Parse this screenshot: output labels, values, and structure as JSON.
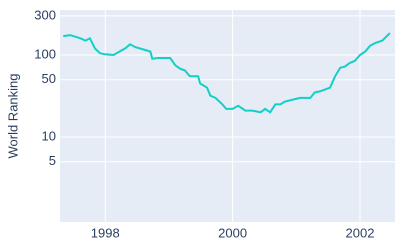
{
  "chart_data": {
    "type": "line",
    "y_label": "World Ranking",
    "x": [
      1997.34,
      1997.45,
      1997.61,
      1997.69,
      1997.76,
      1997.84,
      1997.92,
      1998.0,
      1998.13,
      1998.24,
      1998.31,
      1998.39,
      1998.47,
      1998.63,
      1998.71,
      1998.74,
      1998.83,
      1999.02,
      1999.1,
      1999.18,
      1999.25,
      1999.33,
      1999.46,
      1999.49,
      1999.6,
      1999.65,
      1999.73,
      1999.84,
      1999.9,
      2000.0,
      2000.09,
      2000.2,
      2000.31,
      2000.44,
      2000.51,
      2000.59,
      2000.67,
      2000.75,
      2000.82,
      2000.9,
      2001.06,
      2001.22,
      2001.29,
      2001.37,
      2001.53,
      2001.61,
      2001.69,
      2001.76,
      2001.84,
      2001.92,
      2002.0,
      2002.08,
      2002.16,
      2002.24,
      2002.35,
      2002.47
    ],
    "series": [
      {
        "color": "#14cfc6",
        "values": [
          170,
          175,
          160,
          150,
          160,
          120,
          105,
          102,
          100,
          112,
          120,
          135,
          125,
          115,
          110,
          90,
          92,
          92,
          75,
          68,
          65,
          55,
          55,
          45,
          40,
          32,
          30,
          25,
          22,
          22,
          24,
          21,
          21,
          20,
          22,
          20,
          25,
          25,
          27,
          28,
          30,
          30,
          35,
          36,
          40,
          55,
          70,
          72,
          80,
          85,
          100,
          110,
          130,
          140,
          150,
          185
        ]
      }
    ],
    "xlim": [
      1997.29,
      2002.55
    ],
    "xticks": [
      1998,
      2000,
      2002
    ],
    "ylim": [
      0.92,
      354
    ],
    "yticks": [
      300,
      100,
      50,
      10,
      5
    ],
    "y_scale": "log",
    "grid": true,
    "plot_background": "#e5ecf6"
  }
}
